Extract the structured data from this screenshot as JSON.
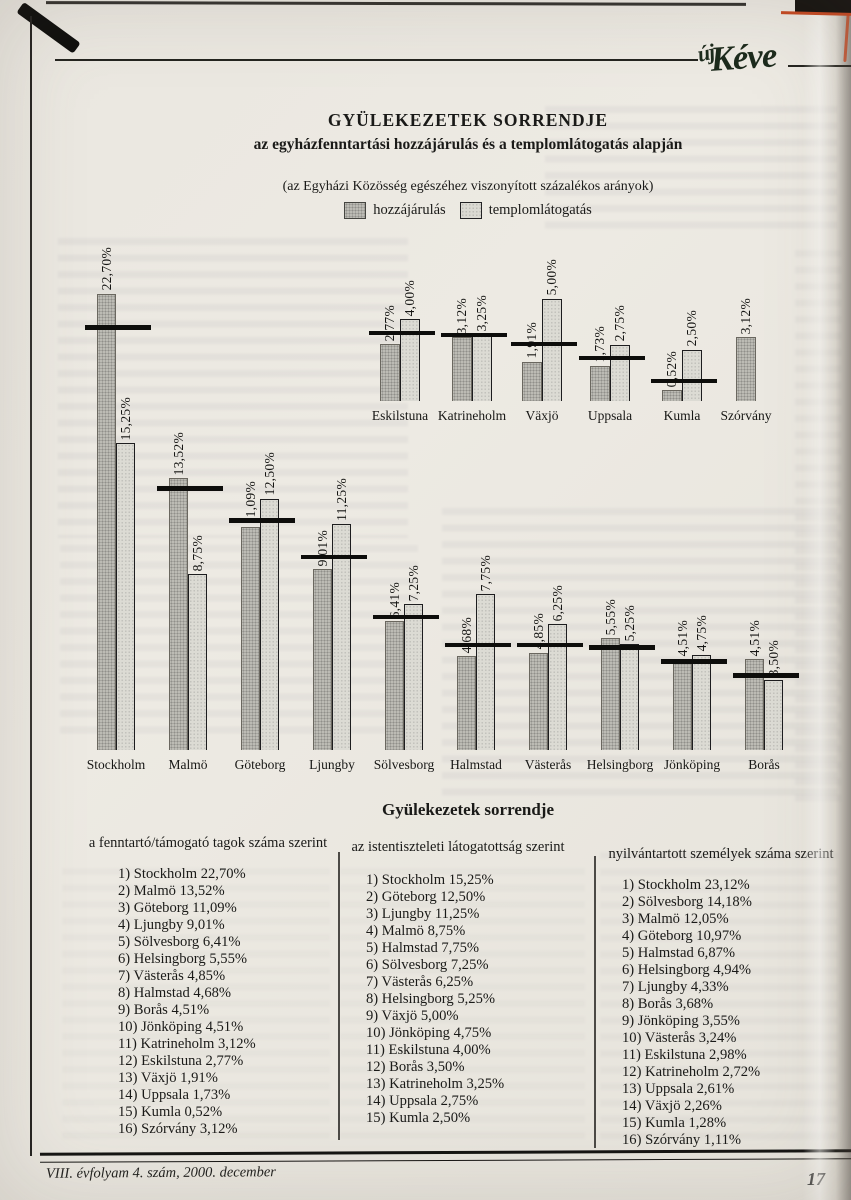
{
  "masthead": {
    "logo_prefix": "új",
    "logo_word": "Kéve"
  },
  "header": {
    "title": "GYÜLEKEZETEK SORRENDJE",
    "subtitle": "az egyházfenntartási hozzájárulás és a templomlátogatás alapján",
    "note": "(az Egyházi Közösség egészéhez viszonyított százalékos arányok)",
    "legend": [
      {
        "label": "hozzájárulás",
        "swatch": "dark-gray"
      },
      {
        "label": "templomlátogatás",
        "swatch": "light-gray"
      }
    ]
  },
  "colors": {
    "bar_contribution": "#bcbbb4",
    "bar_attendance": "#dcdbd4",
    "marker_line": "#0d0d0b",
    "paper": "#eae7e0"
  },
  "chart_data": [
    {
      "type": "bar",
      "position": "upper-right small chart",
      "categories": [
        "Eskilstuna",
        "Katrineholm",
        "Växjö",
        "Uppsala",
        "Kumla",
        "Szórvány"
      ],
      "series": [
        {
          "name": "hozzájárulás",
          "values": [
            2.77,
            3.12,
            1.91,
            1.73,
            0.52,
            3.12
          ]
        },
        {
          "name": "templomlátogatás",
          "values": [
            4.0,
            3.25,
            5.0,
            2.75,
            2.5,
            null
          ]
        }
      ],
      "value_labels": [
        [
          "2,77%",
          "4,00%"
        ],
        [
          "3,12%",
          "3,25%"
        ],
        [
          "1,91%",
          "5,00%"
        ],
        [
          "1,73%",
          "2,75%"
        ],
        [
          "0,52%",
          "2,50%"
        ],
        [
          "3,12%",
          null
        ]
      ],
      "marker_lines_pct": [
        3.3,
        3.2,
        2.8,
        2.1,
        1.0,
        null
      ],
      "ylim": [
        0,
        5.5
      ],
      "grid": false,
      "legend_position": "shared legend in page header"
    },
    {
      "type": "bar",
      "position": "lower main chart",
      "categories": [
        "Stockholm",
        "Malmö",
        "Göteborg",
        "Ljungby",
        "Sölvesborg",
        "Halmstad",
        "Västerås",
        "Helsingborg",
        "Jönköping",
        "Borås"
      ],
      "series": [
        {
          "name": "hozzájárulás",
          "values": [
            22.7,
            13.52,
            11.09,
            9.01,
            6.41,
            4.68,
            4.85,
            5.55,
            4.51,
            4.51
          ]
        },
        {
          "name": "templomlátogatás",
          "values": [
            15.25,
            8.75,
            12.5,
            11.25,
            7.25,
            7.75,
            6.25,
            5.25,
            4.75,
            3.5
          ]
        }
      ],
      "value_labels": [
        [
          "22,70%",
          "15,25%"
        ],
        [
          "13,52%",
          "8,75%"
        ],
        [
          "11,09%",
          "12,50%"
        ],
        [
          "9,01%",
          "11,25%"
        ],
        [
          "6,41%",
          "7,25%"
        ],
        [
          "4,68%",
          "7,75%"
        ],
        [
          "4,85%",
          "6,25%"
        ],
        [
          "5,55%",
          "5,25%"
        ],
        [
          "4,51%",
          "4,75%"
        ],
        [
          "4,51%",
          "3,50%"
        ]
      ],
      "marker_lines_pct": [
        21.0,
        13.0,
        11.4,
        9.6,
        6.6,
        5.2,
        5.2,
        5.1,
        4.4,
        3.7
      ],
      "ylim": [
        0,
        24
      ],
      "grid": false,
      "legend_position": "shared legend in page header"
    }
  ],
  "ranking": {
    "title": "Gyülekezetek sorrendje",
    "columns": [
      {
        "header": "a fenntartó/támogató tagok száma szerint",
        "items": [
          "1) Stockholm 22,70%",
          "2) Malmö 13,52%",
          "3) Göteborg 11,09%",
          "4) Ljungby 9,01%",
          "5) Sölvesborg 6,41%",
          "6) Helsingborg 5,55%",
          "7) Västerås 4,85%",
          "8) Halmstad 4,68%",
          "9) Borås 4,51%",
          "10) Jönköping 4,51%",
          "11) Katrineholm 3,12%",
          "12) Eskilstuna 2,77%",
          "13) Växjö 1,91%",
          "14) Uppsala 1,73%",
          "15) Kumla 0,52%",
          "16) Szórvány 3,12%"
        ]
      },
      {
        "header": "az istentiszteleti látogatottság szerint",
        "items": [
          "1) Stockholm 15,25%",
          "2) Göteborg 12,50%",
          "3) Ljungby 11,25%",
          "4) Malmö 8,75%",
          "5) Halmstad 7,75%",
          "6) Sölvesborg 7,25%",
          "7) Västerås 6,25%",
          "8) Helsingborg 5,25%",
          "9) Växjö 5,00%",
          "10) Jönköping 4,75%",
          "11) Eskilstuna 4,00%",
          "12) Borås 3,50%",
          "13) Katrineholm 3,25%",
          "14) Uppsala 2,75%",
          "15) Kumla 2,50%"
        ]
      },
      {
        "header": "nyilvántartott személyek száma szerint",
        "items": [
          "1) Stockholm 23,12%",
          "2) Sölvesborg 14,18%",
          "3) Malmö 12,05%",
          "4) Göteborg 10,97%",
          "5) Halmstad 6,87%",
          "6) Helsingborg 4,94%",
          "7) Ljungby 4,33%",
          "8) Borås 3,68%",
          "9) Jönköping 3,55%",
          "10) Västerås 3,24%",
          "11) Eskilstuna 2,98%",
          "12) Katrineholm 2,72%",
          "13) Uppsala 2,61%",
          "14) Växjö 2,26%",
          "15) Kumla 1,28%",
          "16) Szórvány 1,11%"
        ]
      }
    ]
  },
  "footer": {
    "issue_line": "VIII. évfolyam 4. szám, 2000. december",
    "page_number": "17"
  }
}
